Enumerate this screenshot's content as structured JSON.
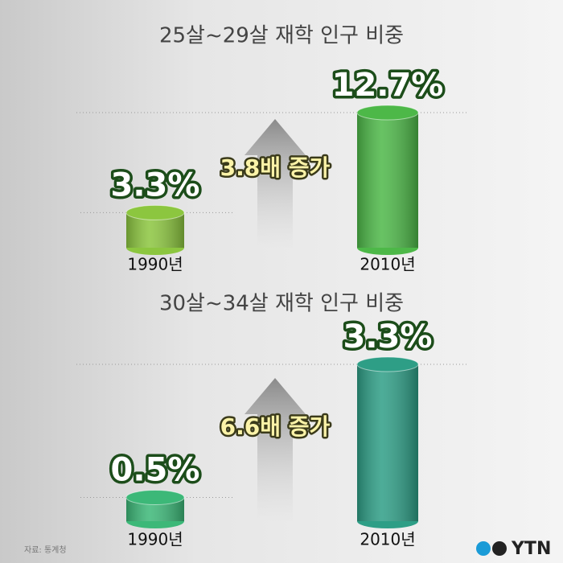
{
  "chart_data": [
    {
      "type": "bar",
      "title": "25살~29살 재학 인구 비중",
      "categories": [
        "1990년",
        "2010년"
      ],
      "values": [
        3.3,
        12.7
      ],
      "value_labels": [
        "3.3%",
        "12.7%"
      ],
      "colors": [
        "#8cc63f",
        "#4db848"
      ],
      "annotation": "3.8배 증가"
    },
    {
      "type": "bar",
      "title": "30살~34살 재학 인구 비중",
      "categories": [
        "1990년",
        "2010년"
      ],
      "values": [
        0.5,
        3.3
      ],
      "value_labels": [
        "0.5%",
        "3.3%"
      ],
      "colors": [
        "#3cb878",
        "#2e9e86"
      ],
      "annotation": "6.6배 증가"
    }
  ],
  "source": "자료: 통계청",
  "logo": "YTN"
}
